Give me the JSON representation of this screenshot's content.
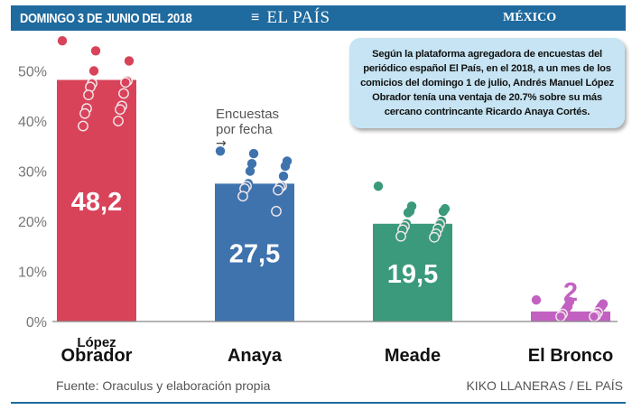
{
  "header": {
    "date": "DOMINGO 3 DE JUNIO DEL 2018",
    "menu_icon": "hamburger-menu-icon",
    "menu_glyph": "≡",
    "brand": "EL PAÍS",
    "section": "MÉXICO"
  },
  "callout": {
    "text": "Según la plataforma agregadora de encuestas del periódico español El País, en el 2018, a un mes de los comicios del domingo 1 de julio, Andrés Manuel López Obrador tenía una ventaja de 20.7% sobre su más cercano contrincante Ricardo Anaya Cortés."
  },
  "annotation": {
    "line1": "Encuestas",
    "line2": "por fecha",
    "arrow": "→"
  },
  "footer": {
    "source": "Fuente: Oraculus y elaboración propia",
    "credit": "KIKO LLANERAS / EL PAÍS"
  },
  "chart_data": {
    "type": "bar",
    "title": "",
    "xlabel": "",
    "ylabel": "",
    "ylim": [
      0,
      55
    ],
    "yticks": [
      0,
      10,
      20,
      30,
      40,
      50
    ],
    "ytick_labels": [
      "0%",
      "10%",
      "20%",
      "30%",
      "40%",
      "50%"
    ],
    "grid": true,
    "categories": [
      {
        "line1": "López",
        "line2": "Obrador"
      },
      {
        "line1": "",
        "line2": "Anaya"
      },
      {
        "line1": "",
        "line2": "Meade"
      },
      {
        "line1": "",
        "line2": "El Bronco"
      }
    ],
    "values": [
      48.2,
      27.5,
      19.5,
      2
    ],
    "value_labels": [
      "48,2",
      "27,5",
      "19,5",
      "2"
    ],
    "colors": [
      "#d9435a",
      "#3f73ae",
      "#3a9a7b",
      "#c261c1"
    ],
    "polls": [
      [
        56,
        54,
        52,
        50,
        48,
        47.5,
        47.7,
        46.8,
        45.5,
        45.2,
        43,
        42.5,
        42.3,
        41.5,
        40,
        39
      ],
      [
        34,
        33.5,
        32,
        31.5,
        31,
        30,
        29,
        27.5,
        27,
        27,
        26.8,
        26.5,
        26.2,
        25,
        22
      ],
      [
        27,
        23,
        22.5,
        22,
        22,
        21.7,
        20,
        19.5,
        19.4,
        19,
        18.5,
        18.3,
        17.5,
        17,
        16.8
      ],
      [
        4.3,
        4,
        3.5,
        3,
        3,
        2.5,
        2.5,
        2,
        1.8,
        1.5,
        1.2,
        1,
        1
      ]
    ]
  }
}
